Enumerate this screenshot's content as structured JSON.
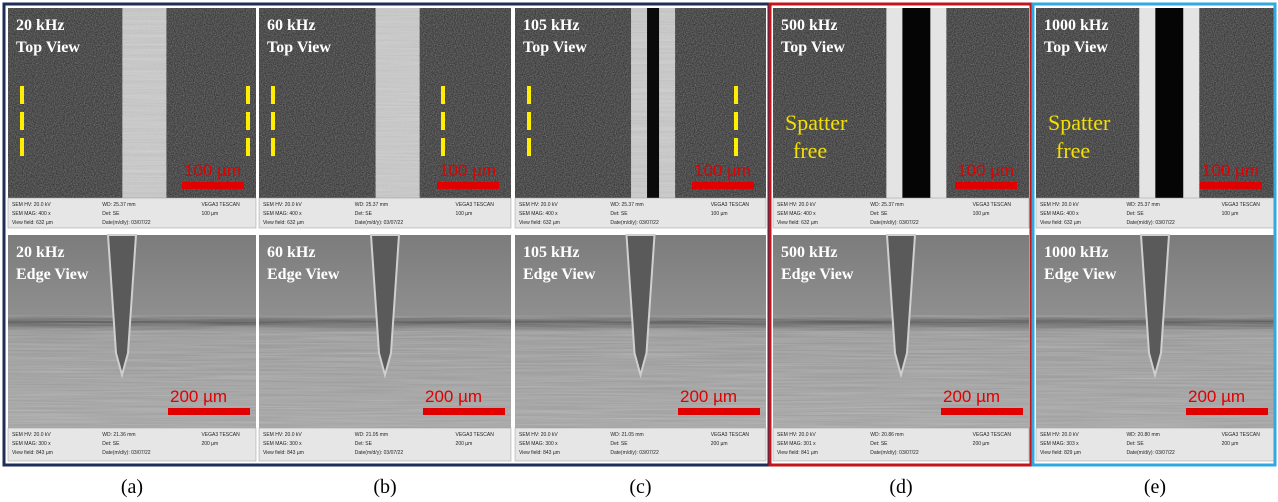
{
  "panels": [
    {
      "caption": "(a)",
      "top": {
        "label": [
          "20 kHz",
          "Top View"
        ],
        "scale": "100 µm",
        "info": [
          [
            "SEM HV: 20.0 kV",
            "WD: 25.37 mm",
            "VEGA3 TESCAN"
          ],
          [
            "SEM MAG: 400 x",
            "Det: SE",
            "100 µm"
          ],
          [
            "View field: 632 µm",
            "Date(m/d/y): 03/07/22"
          ]
        ]
      },
      "edge": {
        "label": [
          "20 kHz",
          "Edge View"
        ],
        "scale": "200 µm",
        "info": [
          [
            "SEM HV: 20.0 kV",
            "WD: 21.36 mm",
            "VEGA3 TESCAN"
          ],
          [
            "SEM MAG: 300 x",
            "Det: SE",
            "200 µm"
          ],
          [
            "View field: 843 µm",
            "Date(m/d/y): 03/07/22"
          ]
        ]
      }
    },
    {
      "caption": "(b)",
      "top": {
        "label": [
          "60 kHz",
          "Top View"
        ],
        "scale": "100 µm",
        "info": [
          [
            "SEM HV: 20.0 kV",
            "WD: 25.37 mm",
            "VEGA3 TESCAN"
          ],
          [
            "SEM MAG: 400 x",
            "Det: SE",
            "100 µm"
          ],
          [
            "View field: 632 µm",
            "Date(m/d/y): 03/07/22"
          ]
        ]
      },
      "edge": {
        "label": [
          "60 kHz",
          "Edge View"
        ],
        "scale": "200 µm",
        "info": [
          [
            "SEM HV: 20.0 kV",
            "WD: 21.05 mm",
            "VEGA3 TESCAN"
          ],
          [
            "SEM MAG: 300 x",
            "Det: SE",
            "200 µm"
          ],
          [
            "View field: 843 µm",
            "Date(m/d/y): 03/07/22"
          ]
        ]
      }
    },
    {
      "caption": "(c)",
      "top": {
        "label": [
          "105 kHz",
          "Top View"
        ],
        "scale": "100 µm",
        "info": [
          [
            "SEM HV: 20.0 kV",
            "WD: 25.37 mm",
            "VEGA3 TESCAN"
          ],
          [
            "SEM MAG: 400 x",
            "Det: SE",
            "100 µm"
          ],
          [
            "View field: 632 µm",
            "Date(m/d/y): 03/07/22"
          ]
        ]
      },
      "edge": {
        "label": [
          "105 kHz",
          "Edge View"
        ],
        "scale": "200 µm",
        "info": [
          [
            "SEM HV: 20.0 kV",
            "WD: 21.05 mm",
            "VEGA3 TESCAN"
          ],
          [
            "SEM MAG: 300 x",
            "Det: SE",
            "200 µm"
          ],
          [
            "View field: 843 µm",
            "Date(m/d/y): 03/07/22"
          ]
        ]
      }
    },
    {
      "caption": "(d)",
      "top": {
        "label": [
          "500 kHz",
          "Top View"
        ],
        "note": [
          "Spatter",
          "free"
        ],
        "scale": "100 µm",
        "info": [
          [
            "SEM HV: 20.0 kV",
            "WD: 25.37 mm",
            "VEGA3 TESCAN"
          ],
          [
            "SEM MAG: 400 x",
            "Det: SE",
            "100 µm"
          ],
          [
            "View field: 632 µm",
            "Date(m/d/y): 03/07/22"
          ]
        ]
      },
      "edge": {
        "label": [
          "500 kHz",
          "Edge View"
        ],
        "scale": "200 µm",
        "info": [
          [
            "SEM HV: 20.0 kV",
            "WD: 20.86 mm",
            "VEGA3 TESCAN"
          ],
          [
            "SEM MAG: 301 x",
            "Det: SE",
            "200 µm"
          ],
          [
            "View field: 841 µm",
            "Date(m/d/y): 03/07/22"
          ]
        ]
      }
    },
    {
      "caption": "(e)",
      "top": {
        "label": [
          "1000 kHz",
          "Top View"
        ],
        "note": [
          "Spatter",
          "free"
        ],
        "scale": "100 µm",
        "info": [
          [
            "SEM HV: 20.0 kV",
            "WD: 25.37 mm",
            "VEGA3 TESCAN"
          ],
          [
            "SEM MAG: 400 x",
            "Det: SE",
            "100 µm"
          ],
          [
            "View field: 632 µm",
            "Date(m/d/y): 03/07/22"
          ]
        ]
      },
      "edge": {
        "label": [
          "1000 kHz",
          "Edge View"
        ],
        "scale": "200 µm",
        "info": [
          [
            "SEM HV: 20.0 kV",
            "WD: 20.80 mm",
            "VEGA3 TESCAN"
          ],
          [
            "SEM MAG: 303 x",
            "Det: SE",
            "200 µm"
          ],
          [
            "View field: 829 µm",
            "Date(m/d/y): 03/07/22"
          ]
        ]
      }
    }
  ]
}
